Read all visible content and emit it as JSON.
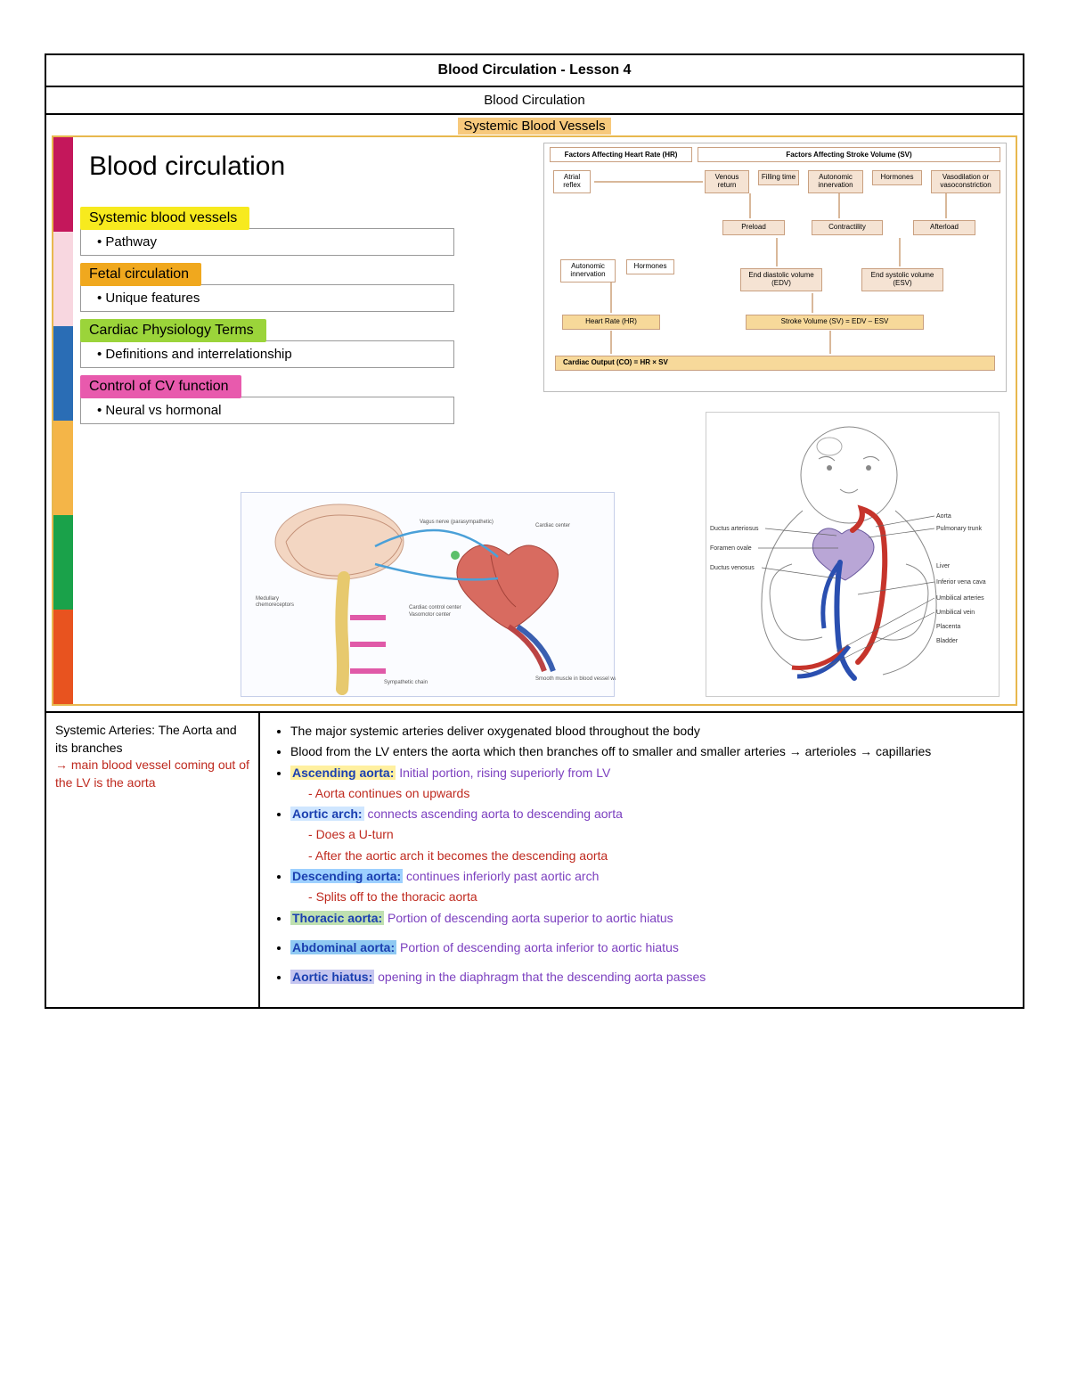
{
  "header": {
    "title": "Blood Circulation - Lesson 4",
    "subtitle": "Blood Circulation",
    "section_label": "Systemic Blood Vessels"
  },
  "slide": {
    "title": "Blood circulation",
    "sidebar_colors": [
      "#c4175b",
      "#f8d7e0",
      "#2a6db5",
      "#f4b548",
      "#1aa24a",
      "#e8531f"
    ],
    "topics": [
      {
        "label": "Systemic blood vessels",
        "bg": "#f7ea1e",
        "sub": "• Pathway"
      },
      {
        "label": "Fetal circulation",
        "bg": "#f0a81e",
        "sub": "• Unique features"
      },
      {
        "label": "Cardiac Physiology Terms",
        "bg": "#9bd43a",
        "sub": "• Definitions and interrelationship"
      },
      {
        "label": "Control of CV function",
        "bg": "#e85aad",
        "sub": "• Neural vs hormonal"
      }
    ]
  },
  "flowchart": {
    "head_left": "Factors Affecting Heart Rate (HR)",
    "head_right": "Factors Affecting Stroke Volume (SV)",
    "boxes": {
      "atrial": "Atrial reflex",
      "venous": "Venous return",
      "filling": "Filling time",
      "auto": "Autonomic innervation",
      "horm": "Hormones",
      "vaso": "Vasodilation or vasoconstriction",
      "preload": "Preload",
      "contract": "Contractility",
      "afterload": "Afterload",
      "autoin2": "Autonomic innervation",
      "horm2": "Hormones",
      "edv": "End diastolic volume (EDV)",
      "esv": "End systolic volume (ESV)",
      "hr": "Heart Rate (HR)",
      "sv": "Stroke Volume (SV) = EDV – ESV",
      "co": "Cardiac Output (CO)   =   HR    ×    SV"
    }
  },
  "fetal_labels": [
    "Ductus arteriosus",
    "Foramen ovale",
    "Ductus venosus",
    "Aorta",
    "Pulmonary trunk",
    "Liver",
    "Inferior vena cava",
    "Umbilical arteries",
    "Umbilical vein",
    "Placenta",
    "Bladder"
  ],
  "notes": {
    "left_title": "Systemic Arteries: The Aorta and its branches",
    "left_red": "→ main blood vessel coming out of the LV is the aorta",
    "bullets": [
      "The major systemic arteries deliver oxygenated blood throughout the body",
      "Blood from the LV enters the aorta which then branches off to smaller and smaller arteries → arterioles → capillaries"
    ],
    "terms": [
      {
        "name": "Ascending aorta:",
        "hl": "#fff0a0",
        "desc": "Initial portion, rising superiorly from LV",
        "subs": [
          "Aorta continues on upwards"
        ]
      },
      {
        "name": "Aortic arch:",
        "hl": "#cfe6ff",
        "desc": "connects ascending aorta to descending aorta",
        "subs": [
          "Does a U-turn",
          "After the aortic arch it becomes the descending aorta"
        ]
      },
      {
        "name": "Descending aorta:",
        "hl": "#9dd0ff",
        "desc": "continues inferiorly past aortic arch",
        "subs": [
          "Splits off to the thoracic aorta"
        ]
      },
      {
        "name": "Thoracic aorta:",
        "hl": "#bfe0b0",
        "desc": "Portion of descending aorta superior to aortic hiatus",
        "subs": []
      },
      {
        "name": "Abdominal aorta:",
        "hl": "#8fc9f2",
        "desc": "Portion of descending aorta inferior to aortic hiatus",
        "subs": []
      },
      {
        "name": "Aortic  hiatus:",
        "hl": "#c5c5ef",
        "desc": "opening in the diaphragm that the descending aorta passes",
        "subs": []
      }
    ]
  }
}
